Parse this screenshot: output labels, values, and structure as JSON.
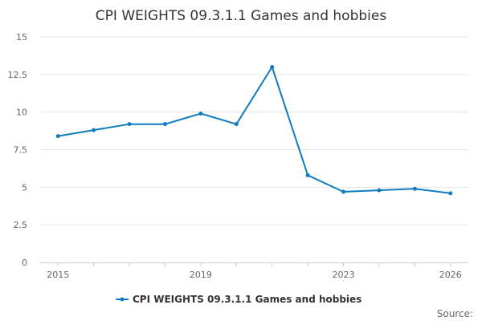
{
  "chart_data": {
    "type": "line",
    "title": "CPI WEIGHTS 09.3.1.1 Games and hobbies",
    "x": [
      2015,
      2016,
      2017,
      2018,
      2019,
      2020,
      2021,
      2022,
      2023,
      2024,
      2025,
      2026
    ],
    "x_tick_labels": [
      "2015",
      "2019",
      "2023",
      "2026"
    ],
    "y_tick_labels": [
      "0",
      "2.5",
      "5",
      "7.5",
      "10",
      "12.5",
      "15"
    ],
    "ylim": [
      0,
      15
    ],
    "grid": true,
    "legend_position": "bottom",
    "series": [
      {
        "name": "CPI WEIGHTS 09.3.1.1 Games and hobbies",
        "color": "#0f7cbf",
        "values": [
          8.4,
          8.8,
          9.2,
          9.2,
          9.9,
          9.2,
          13.0,
          5.8,
          4.7,
          4.8,
          4.9,
          4.6
        ]
      }
    ]
  },
  "footer": {
    "source_label": "Source:"
  }
}
